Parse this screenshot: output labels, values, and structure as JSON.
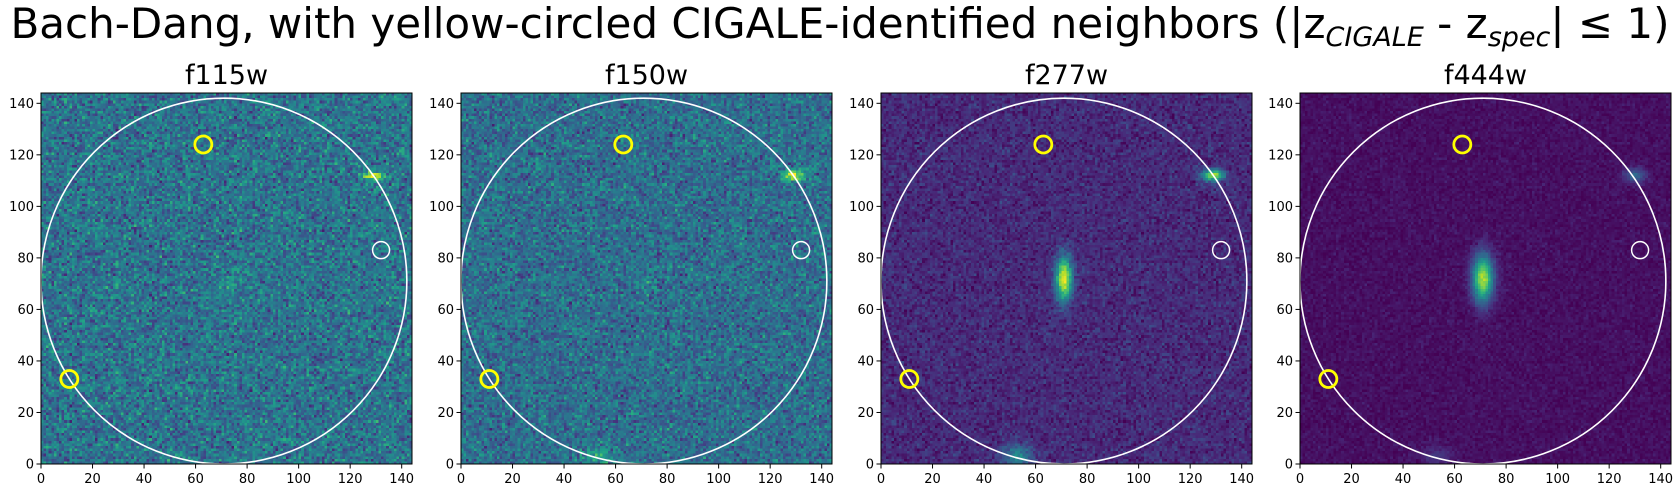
{
  "figure": {
    "title_prefix": "Bach-Dang, with yellow-circled CIGALE-identified neighbors (|z",
    "title_sub1": "CIGALE",
    "title_mid": " - z",
    "title_sub2": "spec",
    "title_suffix": "| ≤ 1)"
  },
  "colors": {
    "cmap": "viridis",
    "neighbor_marker": "#ffff00",
    "other_marker": "#ffffff",
    "aperture_circle": "#ffffff"
  },
  "chart_data": [
    {
      "type": "heatmap",
      "title": "f115w",
      "xlim": [
        0,
        144
      ],
      "ylim": [
        0,
        144
      ],
      "xticks": [
        0,
        20,
        40,
        60,
        80,
        100,
        120,
        140
      ],
      "yticks": [
        0,
        20,
        40,
        60,
        80,
        100,
        120,
        140
      ],
      "noise_level": 0.38,
      "noise_sigma": 0.11,
      "sources": [
        {
          "x": 129,
          "y": 112,
          "sx": 3,
          "sy": 1.2,
          "amp": 0.55
        },
        {
          "x": 72,
          "y": 70,
          "sx": 2.5,
          "sy": 4,
          "amp": 0.08
        },
        {
          "x": 53,
          "y": 3,
          "sx": 3,
          "sy": 2,
          "amp": 0.12
        }
      ],
      "aperture": {
        "cx": 71,
        "cy": 71,
        "r": 71
      },
      "markers": [
        {
          "x": 63,
          "y": 124,
          "type": "neighbor"
        },
        {
          "x": 11,
          "y": 33,
          "type": "neighbor"
        },
        {
          "x": 132,
          "y": 83,
          "type": "other"
        }
      ]
    },
    {
      "type": "heatmap",
      "title": "f150w",
      "xlim": [
        0,
        144
      ],
      "ylim": [
        0,
        144
      ],
      "xticks": [
        0,
        20,
        40,
        60,
        80,
        100,
        120,
        140
      ],
      "yticks": [
        0,
        20,
        40,
        60,
        80,
        100,
        120,
        140
      ],
      "noise_level": 0.36,
      "noise_sigma": 0.1,
      "sources": [
        {
          "x": 129,
          "y": 112,
          "sx": 3,
          "sy": 1.5,
          "amp": 0.6
        },
        {
          "x": 72,
          "y": 70,
          "sx": 2.5,
          "sy": 4,
          "amp": 0.1
        },
        {
          "x": 53,
          "y": 3,
          "sx": 4,
          "sy": 2.5,
          "amp": 0.25
        }
      ],
      "aperture": {
        "cx": 71,
        "cy": 71,
        "r": 71
      },
      "markers": [
        {
          "x": 63,
          "y": 124,
          "type": "neighbor"
        },
        {
          "x": 11,
          "y": 33,
          "type": "neighbor"
        },
        {
          "x": 132,
          "y": 83,
          "type": "other"
        }
      ]
    },
    {
      "type": "heatmap",
      "title": "f277w",
      "xlim": [
        0,
        144
      ],
      "ylim": [
        0,
        144
      ],
      "xticks": [
        0,
        20,
        40,
        60,
        80,
        100,
        120,
        140
      ],
      "yticks": [
        0,
        20,
        40,
        60,
        80,
        100,
        120,
        140
      ],
      "noise_level": 0.12,
      "noise_sigma": 0.05,
      "sources": [
        {
          "x": 71,
          "y": 72,
          "sx": 2.3,
          "sy": 6,
          "amp": 0.85
        },
        {
          "x": 129,
          "y": 112,
          "sx": 3,
          "sy": 1.6,
          "amp": 0.75
        },
        {
          "x": 53,
          "y": 3,
          "sx": 4,
          "sy": 3,
          "amp": 0.35
        }
      ],
      "aperture": {
        "cx": 71,
        "cy": 71,
        "r": 71
      },
      "markers": [
        {
          "x": 63,
          "y": 124,
          "type": "neighbor"
        },
        {
          "x": 11,
          "y": 33,
          "type": "neighbor"
        },
        {
          "x": 132,
          "y": 83,
          "type": "other"
        }
      ]
    },
    {
      "type": "heatmap",
      "title": "f444w",
      "xlim": [
        0,
        144
      ],
      "ylim": [
        0,
        144
      ],
      "xticks": [
        0,
        20,
        40,
        60,
        80,
        100,
        120,
        140
      ],
      "yticks": [
        0,
        20,
        40,
        60,
        80,
        100,
        120,
        140
      ],
      "noise_level": 0.04,
      "noise_sigma": 0.025,
      "sources": [
        {
          "x": 71,
          "y": 72,
          "sx": 2.8,
          "sy": 6.5,
          "amp": 0.85
        },
        {
          "x": 130,
          "y": 112,
          "sx": 3,
          "sy": 2,
          "amp": 0.3
        },
        {
          "x": 53,
          "y": 3,
          "sx": 4,
          "sy": 3,
          "amp": 0.12
        }
      ],
      "aperture": {
        "cx": 71,
        "cy": 71,
        "r": 71
      },
      "markers": [
        {
          "x": 63,
          "y": 124,
          "type": "neighbor"
        },
        {
          "x": 11,
          "y": 33,
          "type": "neighbor"
        },
        {
          "x": 132,
          "y": 83,
          "type": "other"
        }
      ]
    }
  ]
}
